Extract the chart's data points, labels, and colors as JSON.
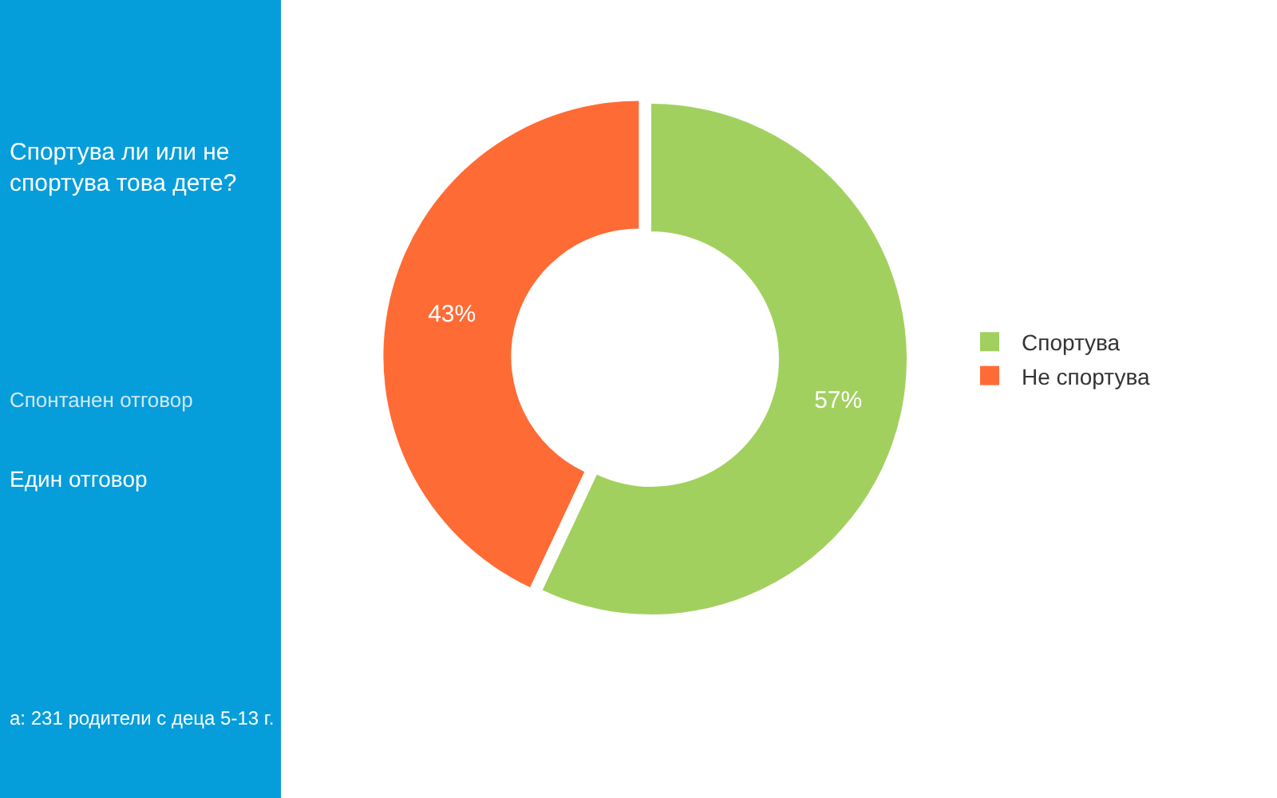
{
  "chart_data": {
    "type": "donut",
    "title": "Спортува ли или не спортува това дете?",
    "categories": [
      "Спортува",
      "Не спортува"
    ],
    "values": [
      57,
      43
    ],
    "colors": [
      "#a2d05f",
      "#ff6b35"
    ],
    "value_labels": [
      "57%",
      "43%"
    ],
    "legend": "right",
    "annotations": [
      "Спонтанен отговор",
      "Един отговор",
      "а: 231 родители с деца 5-13 г."
    ]
  }
}
